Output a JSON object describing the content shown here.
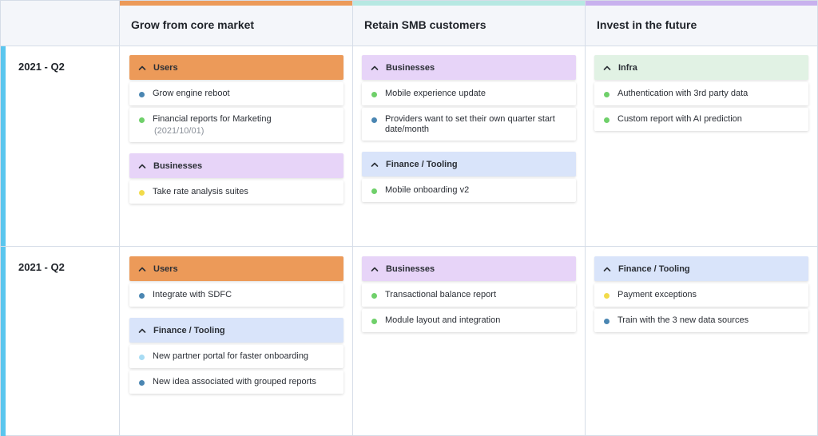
{
  "columns": [
    {
      "title": "Grow from core market",
      "color": "#ec9a59"
    },
    {
      "title": "Retain SMB customers",
      "color": "#b6e8e2"
    },
    {
      "title": "Invest in the future",
      "color": "#c8b1ee"
    }
  ],
  "group_colors": {
    "Users": "#ec9a59",
    "Businesses": "#e7d4f8",
    "Finance / Tooling": "#d9e4fa",
    "Infra": "#e1f2e4"
  },
  "status_colors": {
    "blue": "#4a86b2",
    "green": "#6fd06a",
    "yellow": "#f2db4a",
    "lightblue": "#a8dcf4"
  },
  "rows": [
    {
      "label": "2021 - Q2",
      "cells": [
        [
          {
            "group": "Users",
            "items": [
              {
                "text": "Grow engine reboot",
                "status": "blue"
              },
              {
                "text": "Financial reports for Marketing",
                "sub": "(2021/10/01)",
                "status": "green"
              }
            ]
          },
          {
            "group": "Businesses",
            "items": [
              {
                "text": "Take rate analysis suites",
                "status": "yellow"
              }
            ]
          }
        ],
        [
          {
            "group": "Businesses",
            "items": [
              {
                "text": "Mobile experience update",
                "status": "green"
              },
              {
                "text": "Providers want to set their own quarter start date/month",
                "status": "blue"
              }
            ]
          },
          {
            "group": "Finance / Tooling",
            "items": [
              {
                "text": "Mobile onboarding v2",
                "status": "green"
              }
            ]
          }
        ],
        [
          {
            "group": "Infra",
            "items": [
              {
                "text": "Authentication with 3rd party data",
                "status": "green"
              },
              {
                "text": "Custom report with AI prediction",
                "status": "green"
              }
            ]
          }
        ]
      ]
    },
    {
      "label": "2021 - Q2",
      "cells": [
        [
          {
            "group": "Users",
            "items": [
              {
                "text": "Integrate with SDFC",
                "status": "blue"
              }
            ]
          },
          {
            "group": "Finance / Tooling",
            "items": [
              {
                "text": "New partner portal for faster onboarding",
                "status": "lightblue"
              },
              {
                "text": "New idea associated with grouped reports",
                "status": "blue"
              }
            ]
          }
        ],
        [
          {
            "group": "Businesses",
            "items": [
              {
                "text": "Transactional balance report",
                "status": "green"
              },
              {
                "text": "Module layout and integration",
                "status": "green"
              }
            ]
          }
        ],
        [
          {
            "group": "Finance / Tooling",
            "items": [
              {
                "text": "Payment exceptions",
                "status": "yellow"
              },
              {
                "text": "Train with the 3 new data sources",
                "status": "blue"
              }
            ]
          }
        ]
      ]
    }
  ]
}
